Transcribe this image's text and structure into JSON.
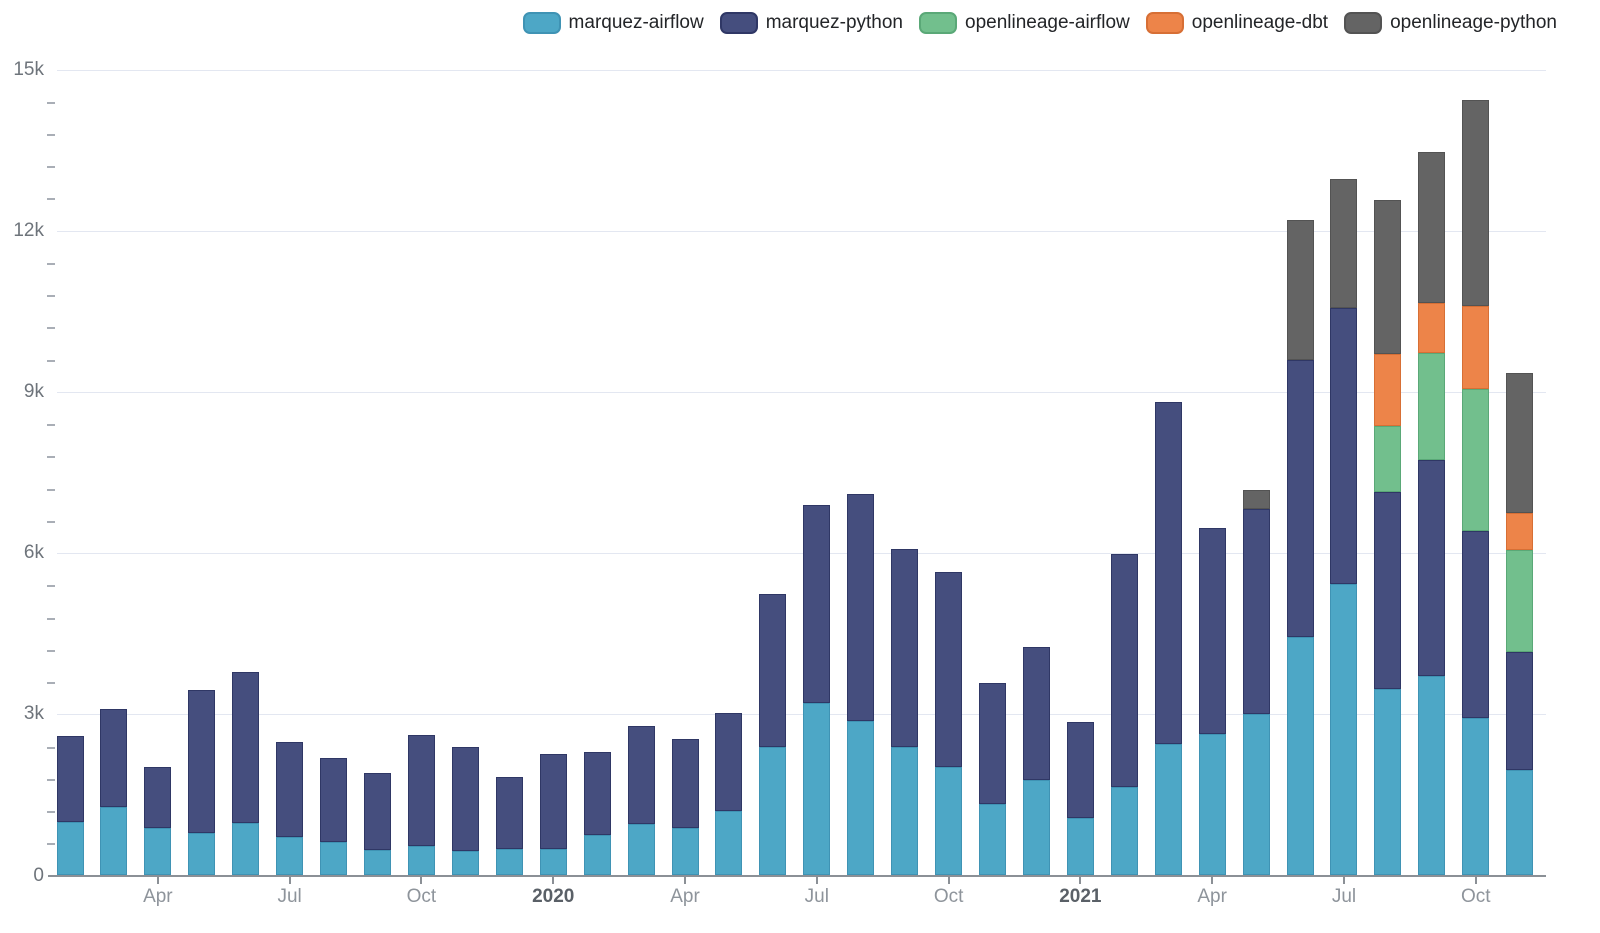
{
  "chart_data": {
    "type": "bar",
    "stacked": true,
    "grid": "horizontal",
    "legend_position": "top-right",
    "x": [
      "Feb 2019",
      "Mar 2019",
      "Apr 2019",
      "May 2019",
      "Jun 2019",
      "Jul 2019",
      "Aug 2019",
      "Sep 2019",
      "Oct 2019",
      "Nov 2019",
      "Dec 2019",
      "Jan 2020",
      "Feb 2020",
      "Mar 2020",
      "Apr 2020",
      "May 2020",
      "Jun 2020",
      "Jul 2020",
      "Aug 2020",
      "Sep 2020",
      "Oct 2020",
      "Nov 2020",
      "Dec 2020",
      "Jan 2021",
      "Feb 2021",
      "Mar 2021",
      "Apr 2021",
      "May 2021",
      "Jun 2021",
      "Jul 2021",
      "Aug 2021",
      "Sep 2021",
      "Oct 2021",
      "Nov 2021"
    ],
    "series": [
      {
        "name": "marquez-airflow",
        "color": "#4da7c6",
        "border_color": "#3f93b4",
        "values": [
          1000,
          1280,
          890,
          795,
          970,
          710,
          625,
          480,
          550,
          460,
          490,
          490,
          755,
          960,
          880,
          1200,
          2395,
          3210,
          2875,
          2395,
          2010,
          1330,
          1770,
          1065,
          1640,
          2450,
          2625,
          3000,
          4440,
          5420,
          3470,
          3720,
          2925,
          1970
        ]
      },
      {
        "name": "marquez-python",
        "color": "#454e7e",
        "border_color": "#2f3765",
        "values": [
          1590,
          1815,
          1120,
          2660,
          2820,
          1770,
          1565,
          1425,
          2060,
          1925,
          1335,
          1780,
          1540,
          1815,
          1655,
          1815,
          2850,
          3680,
          4220,
          3685,
          3630,
          2245,
          2490,
          1790,
          4350,
          6360,
          3835,
          3825,
          5150,
          5140,
          3670,
          4020,
          3480,
          2185
        ]
      },
      {
        "name": "openlineage-airflow",
        "color": "#72bf8d",
        "border_color": "#5aa877",
        "values": [
          0,
          0,
          0,
          0,
          0,
          0,
          0,
          0,
          0,
          0,
          0,
          0,
          0,
          0,
          0,
          0,
          0,
          0,
          0,
          0,
          0,
          0,
          0,
          0,
          0,
          0,
          0,
          0,
          0,
          0,
          1230,
          1980,
          2655,
          1905
        ]
      },
      {
        "name": "openlineage-dbt",
        "color": "#ed8449",
        "border_color": "#d76f35",
        "values": [
          0,
          0,
          0,
          0,
          0,
          0,
          0,
          0,
          0,
          0,
          0,
          0,
          0,
          0,
          0,
          0,
          0,
          0,
          0,
          0,
          0,
          0,
          0,
          0,
          0,
          0,
          0,
          0,
          0,
          0,
          1330,
          930,
          1530,
          690
        ]
      },
      {
        "name": "openlineage-python",
        "color": "#646464",
        "border_color": "#535353",
        "values": [
          0,
          0,
          0,
          0,
          0,
          0,
          0,
          0,
          0,
          0,
          0,
          0,
          0,
          0,
          0,
          0,
          0,
          0,
          0,
          0,
          0,
          0,
          0,
          0,
          0,
          0,
          0,
          345,
          2615,
          2405,
          2880,
          2815,
          3845,
          2595
        ]
      }
    ],
    "ylim": [
      0,
      15000
    ],
    "y_major_step": 3000,
    "y_minor_step": 600,
    "y_tick_labels": [
      "0",
      "3k",
      "6k",
      "9k",
      "12k",
      "15k"
    ],
    "x_ticks": [
      {
        "index": 2,
        "label": "Apr",
        "year": false
      },
      {
        "index": 5,
        "label": "Jul",
        "year": false
      },
      {
        "index": 8,
        "label": "Oct",
        "year": false
      },
      {
        "index": 11,
        "label": "2020",
        "year": true
      },
      {
        "index": 14,
        "label": "Apr",
        "year": false
      },
      {
        "index": 17,
        "label": "Jul",
        "year": false
      },
      {
        "index": 20,
        "label": "Oct",
        "year": false
      },
      {
        "index": 23,
        "label": "2021",
        "year": true
      },
      {
        "index": 26,
        "label": "Apr",
        "year": false
      },
      {
        "index": 29,
        "label": "Jul",
        "year": false
      },
      {
        "index": 32,
        "label": "Oct",
        "year": false
      }
    ]
  }
}
